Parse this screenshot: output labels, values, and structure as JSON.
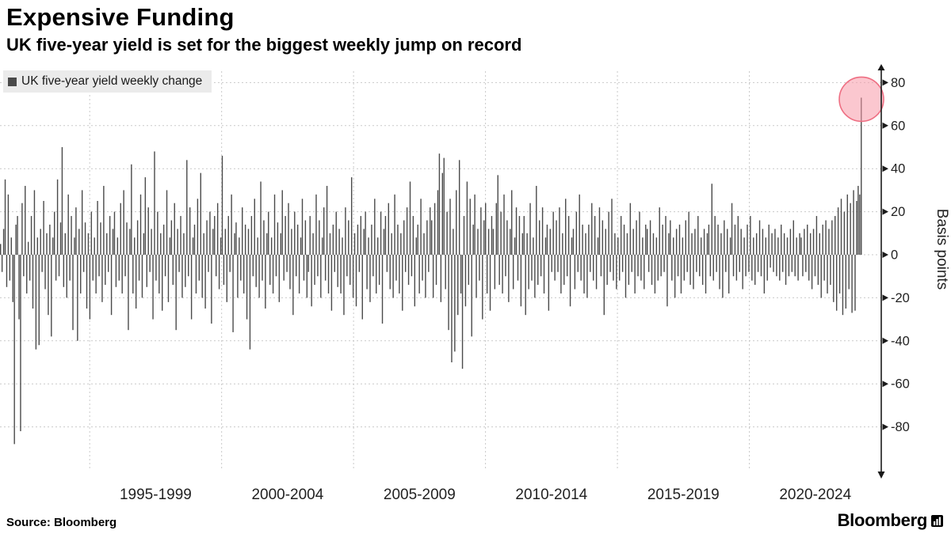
{
  "header": {
    "title": "Expensive Funding",
    "subtitle": "UK five-year yield is set for the biggest weekly jump on record"
  },
  "footer": {
    "source": "Source: Bloomberg",
    "brand": "Bloomberg"
  },
  "colors": {
    "bar": "#4a4a4a",
    "grid": "#c9c9c9",
    "axis": "#1a1a1a",
    "text": "#222222",
    "highlight_fill": "#f799a8",
    "highlight_stroke": "#ee6e82"
  },
  "chart_data": {
    "type": "bar",
    "title": "Expensive Funding",
    "subtitle": "UK five-year yield is set for the biggest weekly jump on record",
    "legend": "UK five-year yield weekly change",
    "ylabel": "Basis points",
    "xlabel": "",
    "categories": [
      "1995-1999",
      "2000-2004",
      "2005-2009",
      "2010-2014",
      "2015-2019",
      "2020-2024"
    ],
    "gridline_years": [
      1995,
      2000,
      2005,
      2010,
      2015,
      2020
    ],
    "x_year_range": [
      1991.6,
      2025
    ],
    "y_ticks": [
      80,
      60,
      40,
      20,
      0,
      -20,
      -40,
      -60,
      -80
    ],
    "ylim": [
      -98,
      86
    ],
    "grid": true,
    "legend_position": "top-left",
    "highlight": {
      "index": 559,
      "value": 73
    },
    "values": [
      5,
      -8,
      12,
      35,
      -15,
      28,
      -12,
      8,
      -22,
      -88,
      14,
      18,
      -30,
      -82,
      24,
      -10,
      32,
      -18,
      6,
      -12,
      18,
      -25,
      30,
      -44,
      8,
      -42,
      12,
      -8,
      25,
      -16,
      10,
      -28,
      14,
      -38,
      8,
      20,
      -12,
      35,
      -10,
      15,
      50,
      -15,
      10,
      -20,
      28,
      -12,
      18,
      -35,
      8,
      22,
      -40,
      12,
      -18,
      30,
      -8,
      15,
      -25,
      10,
      -30,
      20,
      -12,
      8,
      -18,
      25,
      -10,
      15,
      -22,
      32,
      -14,
      10,
      -8,
      18,
      -28,
      12,
      20,
      -15,
      8,
      -12,
      24,
      -18,
      30,
      -10,
      15,
      -35,
      12,
      42,
      -18,
      8,
      -25,
      16,
      -12,
      28,
      -20,
      10,
      36,
      -15,
      22,
      -8,
      12,
      -30,
      48,
      -12,
      20,
      -18,
      10,
      -26,
      14,
      -10,
      30,
      -22,
      8,
      16,
      -14,
      24,
      -35,
      12,
      -8,
      18,
      -20,
      10,
      -15,
      44,
      -10,
      22,
      -30,
      8,
      14,
      -18,
      26,
      -12,
      38,
      -20,
      10,
      -25,
      16,
      -8,
      20,
      -32,
      12,
      18,
      -10,
      24,
      -16,
      8,
      46,
      -14,
      12,
      -22,
      18,
      -8,
      28,
      -36,
      10,
      15,
      -20,
      8,
      -12,
      22,
      -18,
      14,
      -30,
      12,
      -44,
      18,
      -10,
      26,
      -15,
      8,
      -20,
      34,
      -12,
      16,
      -25,
      10,
      20,
      -14,
      8,
      -18,
      28,
      -10,
      15,
      -22,
      10,
      30,
      -12,
      18,
      -8,
      24,
      -16,
      12,
      -28,
      20,
      -10,
      14,
      -18,
      8,
      26,
      -12,
      16,
      -20,
      -8,
      18,
      -24,
      10,
      -14,
      28,
      -10,
      16,
      -20,
      8,
      22,
      -12,
      32,
      -18,
      10,
      -26,
      14,
      -8,
      20,
      -15,
      12,
      -18,
      8,
      -28,
      22,
      -10,
      16,
      -14,
      36,
      -20,
      10,
      -24,
      14,
      -8,
      18,
      -30,
      12,
      20,
      -16,
      8,
      -22,
      14,
      -10,
      26,
      -18,
      8,
      -14,
      20,
      -32,
      12,
      18,
      -8,
      24,
      -16,
      10,
      -20,
      28,
      -12,
      14,
      -18,
      10,
      -26,
      16,
      -8,
      22,
      -14,
      34,
      -10,
      18,
      -24,
      8,
      14,
      -18,
      26,
      -12,
      10,
      -20,
      16,
      -8,
      22,
      16,
      -20,
      24,
      -14,
      30,
      47,
      -22,
      38,
      45,
      -16,
      20,
      -35,
      26,
      -50,
      12,
      -45,
      30,
      -28,
      44,
      -18,
      -53,
      18,
      -24,
      34,
      -14,
      26,
      -38,
      14,
      28,
      -20,
      12,
      -12,
      22,
      -30,
      16,
      24,
      -18,
      12,
      -26,
      18,
      12,
      -16,
      24,
      37,
      -14,
      20,
      -18,
      28,
      -10,
      16,
      -22,
      12,
      30,
      -16,
      8,
      22,
      -12,
      18,
      -24,
      10,
      18,
      -28,
      10,
      -16,
      24,
      -12,
      8,
      -20,
      32,
      -14,
      16,
      -10,
      22,
      -18,
      8,
      14,
      -26,
      12,
      -8,
      20,
      -12,
      16,
      -8,
      22,
      -18,
      10,
      -14,
      26,
      -10,
      18,
      -24,
      8,
      12,
      -16,
      20,
      -8,
      28,
      -12,
      14,
      -18,
      10,
      -20,
      14,
      -8,
      24,
      -12,
      18,
      -16,
      8,
      22,
      -10,
      16,
      -28,
      12,
      -14,
      20,
      -8,
      26,
      -12,
      10,
      -16,
      8,
      -12,
      18,
      -8,
      14,
      -20,
      10,
      -14,
      24,
      -8,
      12,
      -18,
      16,
      -10,
      20,
      -12,
      8,
      -16,
      14,
      12,
      -8,
      16,
      -14,
      10,
      -18,
      8,
      -12,
      22,
      -10,
      14,
      -8,
      18,
      -24,
      10,
      16,
      -12,
      8,
      -20,
      12,
      -10,
      14,
      -18,
      8,
      -12,
      16,
      -8,
      20,
      -14,
      10,
      -16,
      12,
      -8,
      18,
      -10,
      8,
      -14,
      12,
      -18,
      10,
      14,
      -10,
      33,
      -12,
      18,
      -8,
      14,
      -16,
      10,
      -20,
      16,
      -8,
      12,
      -18,
      8,
      24,
      -10,
      14,
      -12,
      18,
      -8,
      12,
      -16,
      8,
      -10,
      14,
      -8,
      18,
      -12,
      8,
      -14,
      10,
      -8,
      16,
      -10,
      12,
      -18,
      8,
      -12,
      14,
      -6,
      10,
      -8,
      12,
      -10,
      8,
      -12,
      14,
      -8,
      10,
      -14,
      8,
      -10,
      12,
      -8,
      16,
      -10,
      8,
      -12,
      10,
      8,
      -10,
      12,
      -8,
      14,
      -12,
      10,
      -16,
      12,
      -10,
      18,
      -14,
      10,
      -20,
      14,
      -12,
      16,
      -18,
      12,
      -14,
      16,
      -22,
      18,
      -26,
      22,
      -18,
      26,
      -28,
      20,
      -25,
      28,
      -16,
      24,
      -27,
      30,
      -26,
      25,
      32,
      28,
      73
    ]
  }
}
